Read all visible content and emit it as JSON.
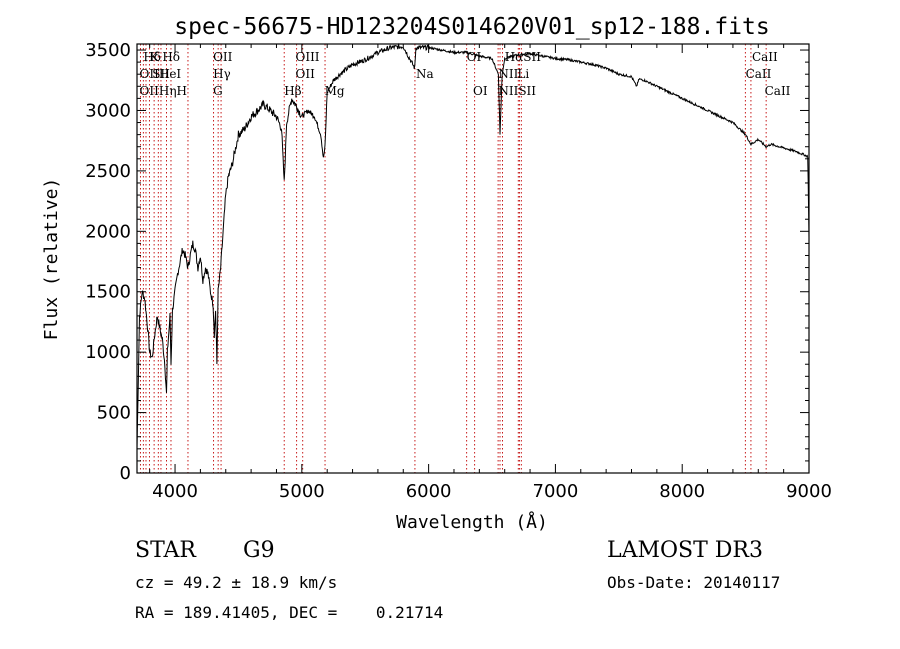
{
  "chart_data": {
    "type": "line",
    "title": "spec-56675-HD123204S014620V01_sp12-188.fits",
    "xlabel": "Wavelength (Å)",
    "ylabel": "Flux (relative)",
    "xlim": [
      3700,
      9000
    ],
    "ylim": [
      0,
      3550
    ],
    "xticks": [
      "4000",
      "5000",
      "6000",
      "7000",
      "8000",
      "9000"
    ],
    "xtick_values": [
      4000,
      5000,
      6000,
      7000,
      8000,
      9000
    ],
    "yticks": [
      "0",
      "500",
      "1000",
      "1500",
      "2000",
      "2500",
      "3000",
      "3500"
    ],
    "ytick_values": [
      0,
      500,
      1000,
      1500,
      2000,
      2500,
      3000,
      3500
    ],
    "grid": false,
    "series": [
      {
        "x": [
          3700,
          3720,
          3740,
          3760,
          3780,
          3800,
          3820,
          3840,
          3860,
          3880,
          3900,
          3920,
          3933,
          3940,
          3960,
          3968,
          3980,
          4000,
          4020,
          4040,
          4060,
          4080,
          4102,
          4120,
          4140,
          4160,
          4180,
          4200,
          4220,
          4240,
          4260,
          4280,
          4300,
          4310,
          4320,
          4330,
          4340,
          4360,
          4380,
          4400,
          4420,
          4450,
          4500,
          4550,
          4600,
          4650,
          4700,
          4750,
          4800,
          4840,
          4861,
          4880,
          4900,
          4920,
          4950,
          5000,
          5050,
          5100,
          5150,
          5170,
          5183,
          5200,
          5250,
          5300,
          5400,
          5500,
          5600,
          5700,
          5800,
          5890,
          5900,
          6000,
          6100,
          6200,
          6300,
          6400,
          6500,
          6550,
          6563,
          6580,
          6600,
          6700,
          6800,
          6900,
          7000,
          7100,
          7200,
          7300,
          7400,
          7500,
          7600,
          7640,
          7660,
          7700,
          7800,
          7900,
          8000,
          8100,
          8200,
          8300,
          8400,
          8500,
          8542,
          8600,
          8662,
          8700,
          8800,
          8900,
          8990,
          9000
        ],
        "y": [
          200,
          1300,
          1500,
          1450,
          1250,
          1000,
          950,
          1150,
          1300,
          1200,
          1100,
          900,
          650,
          1000,
          1300,
          900,
          1350,
          1500,
          1650,
          1750,
          1850,
          1800,
          1700,
          1800,
          1900,
          1850,
          1700,
          1800,
          1600,
          1700,
          1650,
          1500,
          1400,
          1150,
          1350,
          900,
          1500,
          1700,
          2000,
          2300,
          2450,
          2550,
          2800,
          2850,
          2950,
          3000,
          3050,
          3000,
          2950,
          2850,
          2400,
          2900,
          3000,
          3100,
          3050,
          2950,
          3000,
          2950,
          2800,
          2600,
          2700,
          3150,
          3250,
          3300,
          3380,
          3420,
          3480,
          3520,
          3530,
          3350,
          3520,
          3520,
          3500,
          3480,
          3480,
          3450,
          3430,
          3300,
          2800,
          3300,
          3430,
          3460,
          3470,
          3450,
          3430,
          3420,
          3400,
          3380,
          3350,
          3300,
          3280,
          3200,
          3260,
          3250,
          3200,
          3150,
          3100,
          3050,
          3000,
          2950,
          2900,
          2800,
          2720,
          2760,
          2700,
          2720,
          2690,
          2660,
          2620,
          1950
        ]
      }
    ],
    "line_labels": [
      {
        "x": 3750,
        "text": "Hδ",
        "row": 1
      },
      {
        "x": 3800,
        "text": "K",
        "row": 1
      },
      {
        "x": 3900,
        "text": "Hδ",
        "row": 1
      },
      {
        "x": 4300,
        "text": "OII",
        "row": 1
      },
      {
        "x": 4950,
        "text": "OIII",
        "row": 1
      },
      {
        "x": 6300,
        "text": "OI",
        "row": 1
      },
      {
        "x": 6600,
        "text": "HαSII",
        "row": 1
      },
      {
        "x": 8550,
        "text": "CaII",
        "row": 1
      },
      {
        "x": 3720,
        "text": "OIIHeI",
        "row": 2
      },
      {
        "x": 3820,
        "text": "SII",
        "row": 2
      },
      {
        "x": 4300,
        "text": "Hγ",
        "row": 2
      },
      {
        "x": 4950,
        "text": "OII",
        "row": 2
      },
      {
        "x": 5900,
        "text": "Na",
        "row": 2
      },
      {
        "x": 6550,
        "text": "NII",
        "row": 2
      },
      {
        "x": 6700,
        "text": "Li",
        "row": 2
      },
      {
        "x": 8500,
        "text": "CaII",
        "row": 2
      },
      {
        "x": 3720,
        "text": "OIIHηH",
        "row": 3
      },
      {
        "x": 4300,
        "text": "G",
        "row": 3
      },
      {
        "x": 4861,
        "text": "Hβ",
        "row": 3
      },
      {
        "x": 5180,
        "text": "Mg",
        "row": 3
      },
      {
        "x": 6350,
        "text": "OI",
        "row": 3
      },
      {
        "x": 6550,
        "text": "NIISII",
        "row": 3
      },
      {
        "x": 8650,
        "text": "CaII",
        "row": 3
      }
    ],
    "line_markers": [
      3727,
      3750,
      3771,
      3798,
      3835,
      3868,
      3889,
      3933,
      3968,
      4102,
      4304,
      4340,
      4363,
      4861,
      4959,
      5007,
      5183,
      5892,
      6300,
      6363,
      6548,
      6563,
      6583,
      6707,
      6716,
      6731,
      8498,
      8542,
      8662
    ]
  },
  "info": {
    "class_label": "STAR",
    "subclass": "G9",
    "survey": "LAMOST DR3",
    "redshift": "cz = 49.2 ± 18.9 km/s",
    "obs_date": "Obs-Date: 20140117",
    "coords": "RA = 189.41405, DEC =    0.21714"
  }
}
